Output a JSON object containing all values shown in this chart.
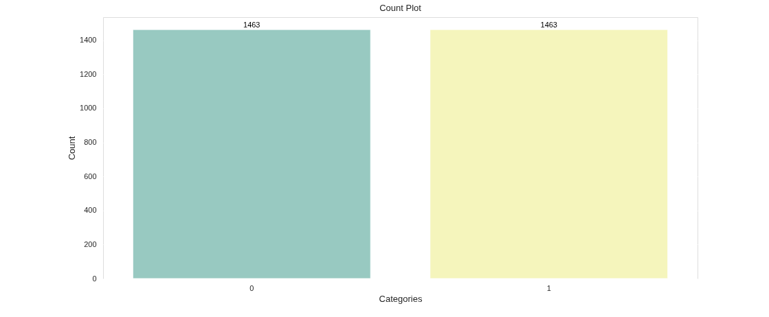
{
  "chart_data": {
    "type": "bar",
    "title": "Count Plot",
    "xlabel": "Categories",
    "ylabel": "Count",
    "categories": [
      "0",
      "1"
    ],
    "values": [
      1463,
      1463
    ],
    "colors": [
      "#98c9c1",
      "#f5f5bc"
    ],
    "ylim": [
      0,
      1536
    ],
    "yticks": [
      0,
      200,
      400,
      600,
      800,
      1000,
      1200,
      1400
    ],
    "grid": "y",
    "data_labels": true
  }
}
